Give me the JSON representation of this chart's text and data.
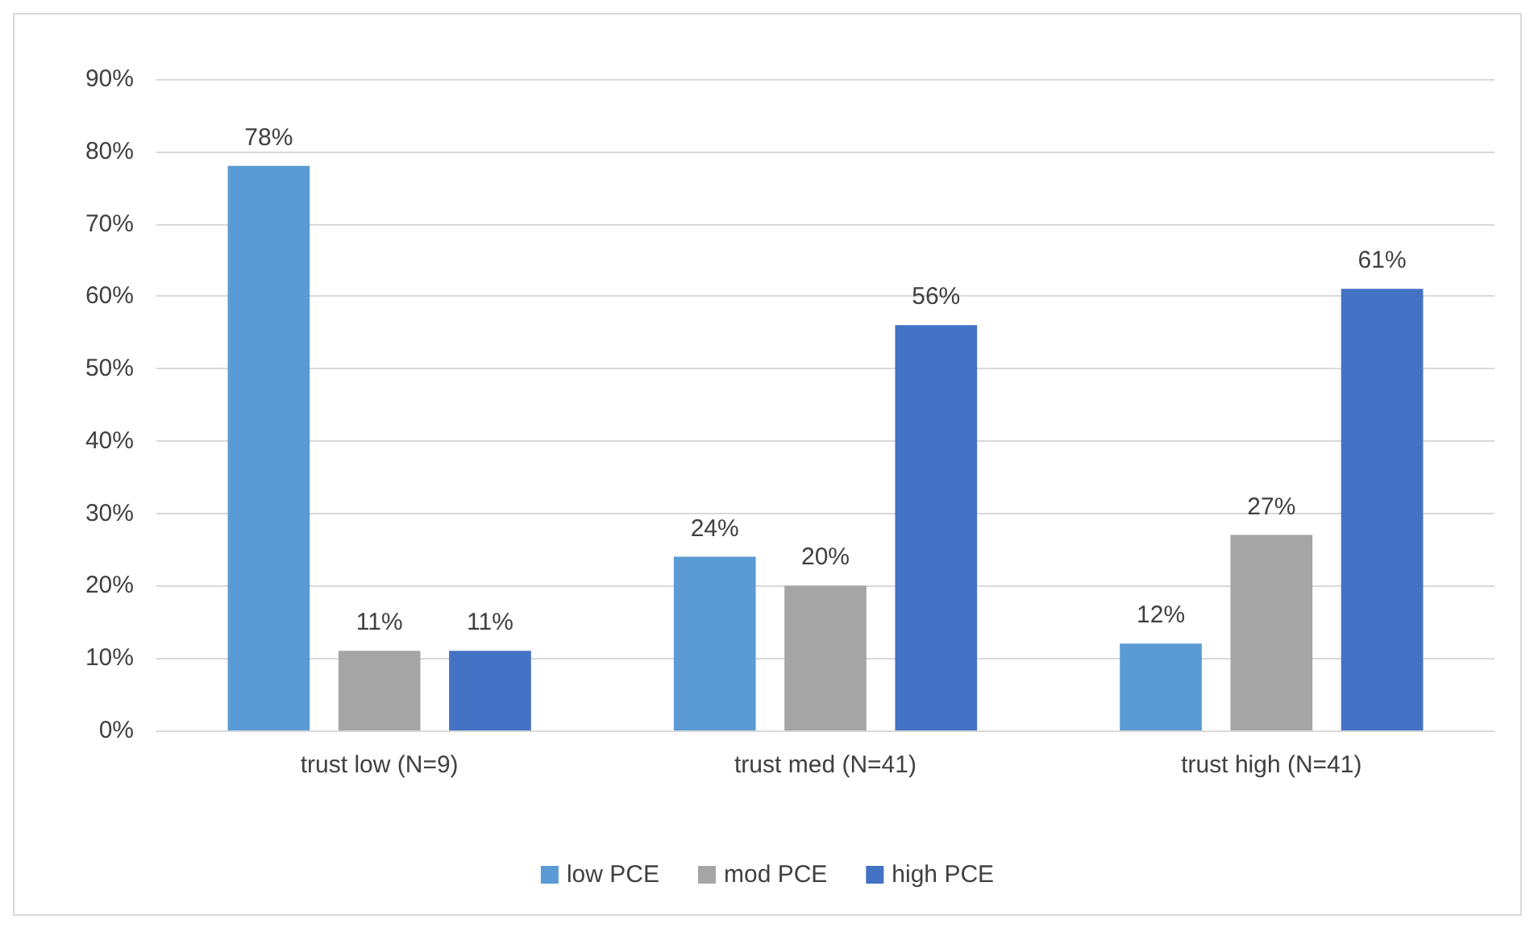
{
  "chart_data": {
    "type": "bar",
    "categories": [
      "trust low (N=9)",
      "trust med (N=41)",
      "trust high (N=41)"
    ],
    "series": [
      {
        "name": "low PCE",
        "color": "#5b9bd5",
        "values": [
          78,
          24,
          12
        ],
        "value_labels": [
          "78%",
          "24%",
          "12%"
        ]
      },
      {
        "name": "mod PCE",
        "color": "#a5a5a5",
        "values": [
          11,
          20,
          27
        ],
        "value_labels": [
          "11%",
          "20%",
          "27%"
        ]
      },
      {
        "name": "high PCE",
        "color": "#4472c4",
        "values": [
          11,
          56,
          61
        ],
        "value_labels": [
          "11%",
          "56%",
          "61%"
        ]
      }
    ],
    "ylim": [
      0,
      90
    ],
    "yticks": [
      {
        "value": 0,
        "label": "0%"
      },
      {
        "value": 10,
        "label": "10%"
      },
      {
        "value": 20,
        "label": "20%"
      },
      {
        "value": 30,
        "label": "30%"
      },
      {
        "value": 40,
        "label": "40%"
      },
      {
        "value": 50,
        "label": "50%"
      },
      {
        "value": 60,
        "label": "60%"
      },
      {
        "value": 70,
        "label": "70%"
      },
      {
        "value": 80,
        "label": "80%"
      },
      {
        "value": 90,
        "label": "90%"
      }
    ],
    "grid": "y",
    "legend": "bottom"
  }
}
